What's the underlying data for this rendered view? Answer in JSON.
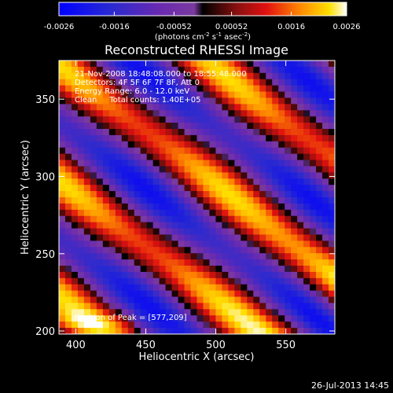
{
  "chart_data": {
    "type": "heatmap",
    "title": "Reconstructed RHESSI Image",
    "xlabel": "Heliocentric X (arcsec)",
    "ylabel": "Heliocentric Y (arcsec)",
    "xlim": [
      388,
      585
    ],
    "ylim": [
      198,
      375
    ],
    "xticks": [
      "400",
      "450",
      "500",
      "550"
    ],
    "yticks": [
      "200",
      "250",
      "300",
      "350"
    ],
    "colorbar": {
      "ticks": [
        "-0.0026",
        "-0.0016",
        "-0.00052",
        "0.00052",
        "0.0016",
        "0.0026"
      ],
      "range": [
        -0.0026,
        0.0026
      ],
      "unit_prefix": "(photons cm",
      "unit_exp1": "-2",
      "unit_mid": " s",
      "unit_exp2": "-1",
      "unit_mid2": " asec",
      "unit_exp3": "-2",
      "unit_suffix": ")"
    },
    "annotations": [
      "21-Nov-2008 18:48:08.000 to 18:55:48.000",
      "Detectors: 4F 5F 6F 7F 8F, Att 0",
      "Energy Range: 6.0 - 12.0 keV",
      "Clean     Total counts: 1.40E+05"
    ],
    "peak_label": "Position of Peak = [577,209]",
    "peak": [
      577,
      209
    ],
    "grid": false
  },
  "footer": {
    "timestamp": "26-Jul-2013 14:45"
  }
}
